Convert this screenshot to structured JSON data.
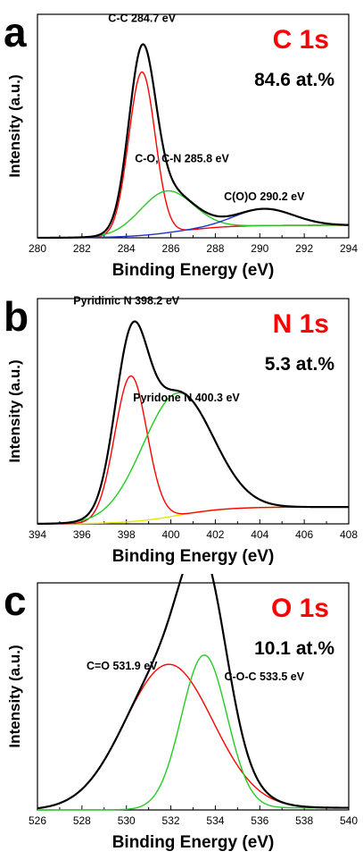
{
  "colors": {
    "envelope": "#000000",
    "red": "#ff0000",
    "green": "#22cc22",
    "blue": "#2233cc",
    "yellow": "#e8e800",
    "title_red": "#ff0000"
  },
  "chart_data": [
    {
      "type": "line",
      "panel_label": "a",
      "element": "C 1s",
      "at_percent": "84.6 at.%",
      "xlabel": "Binding Energy (eV)",
      "ylabel": "Intensity (a.u.)",
      "xlim": [
        280,
        294
      ],
      "xticks": [
        "280",
        "282",
        "284",
        "286",
        "288",
        "290",
        "292",
        "294"
      ],
      "ylim": [
        0,
        1.05
      ],
      "annotations": [
        {
          "text": "C-C 284.7 eV",
          "x": 284.7,
          "y": 1.03
        },
        {
          "text": "C-O, C-N 285.8 eV",
          "x": 286.5,
          "y": 0.36
        },
        {
          "text": "C(O)O 290.2 eV",
          "x": 290.2,
          "y": 0.18
        }
      ],
      "baseline": {
        "start": 0.0,
        "end": 0.06
      },
      "series": [
        {
          "color": "red",
          "center": 284.7,
          "height": 0.78,
          "width": 0.9
        },
        {
          "color": "green",
          "center": 285.8,
          "height": 0.2,
          "width": 1.8
        },
        {
          "color": "blue",
          "center": 290.2,
          "height": 0.08,
          "width": 2.0
        }
      ]
    },
    {
      "type": "line",
      "panel_label": "b",
      "element": "N 1s",
      "at_percent": "5.3 at.%",
      "xlabel": "Binding Energy (eV)",
      "ylabel": "Intensity (a.u.)",
      "xlim": [
        394,
        408
      ],
      "xticks": [
        "394",
        "396",
        "398",
        "400",
        "402",
        "404",
        "406",
        "408"
      ],
      "ylim": [
        0,
        1.05
      ],
      "annotations": [
        {
          "text": "Pyridinic N 398.2 eV",
          "x": 398.0,
          "y": 1.04
        },
        {
          "text": "Pyridone N 400.3 eV",
          "x": 400.7,
          "y": 0.58
        }
      ],
      "baseline": {
        "start": 0.0,
        "end": 0.08
      },
      "series": [
        {
          "color": "red",
          "center": 398.2,
          "height": 0.69,
          "width": 1.1
        },
        {
          "color": "green",
          "center": 400.3,
          "height": 0.58,
          "width": 2.4
        }
      ]
    },
    {
      "type": "line",
      "panel_label": "c",
      "element": "O 1s",
      "at_percent": "10.1 at.%",
      "xlabel": "Binding Energy (eV)",
      "ylabel": "Intensity (a.u.)",
      "xlim": [
        526,
        540
      ],
      "xticks": [
        "526",
        "528",
        "530",
        "532",
        "534",
        "536",
        "538",
        "540"
      ],
      "ylim": [
        0,
        1.05
      ],
      "annotations": [
        {
          "text": "C=O 531.9 eV",
          "x": 529.8,
          "y": 0.66
        },
        {
          "text": "C-O-C 533.5 eV",
          "x": 536.2,
          "y": 0.61
        }
      ],
      "baseline": {
        "start": 0.0,
        "end": 0.01
      },
      "series": [
        {
          "color": "red",
          "center": 531.9,
          "height": 0.68,
          "width": 3.0
        },
        {
          "color": "green",
          "center": 533.5,
          "height": 0.72,
          "width": 1.55
        }
      ]
    }
  ]
}
